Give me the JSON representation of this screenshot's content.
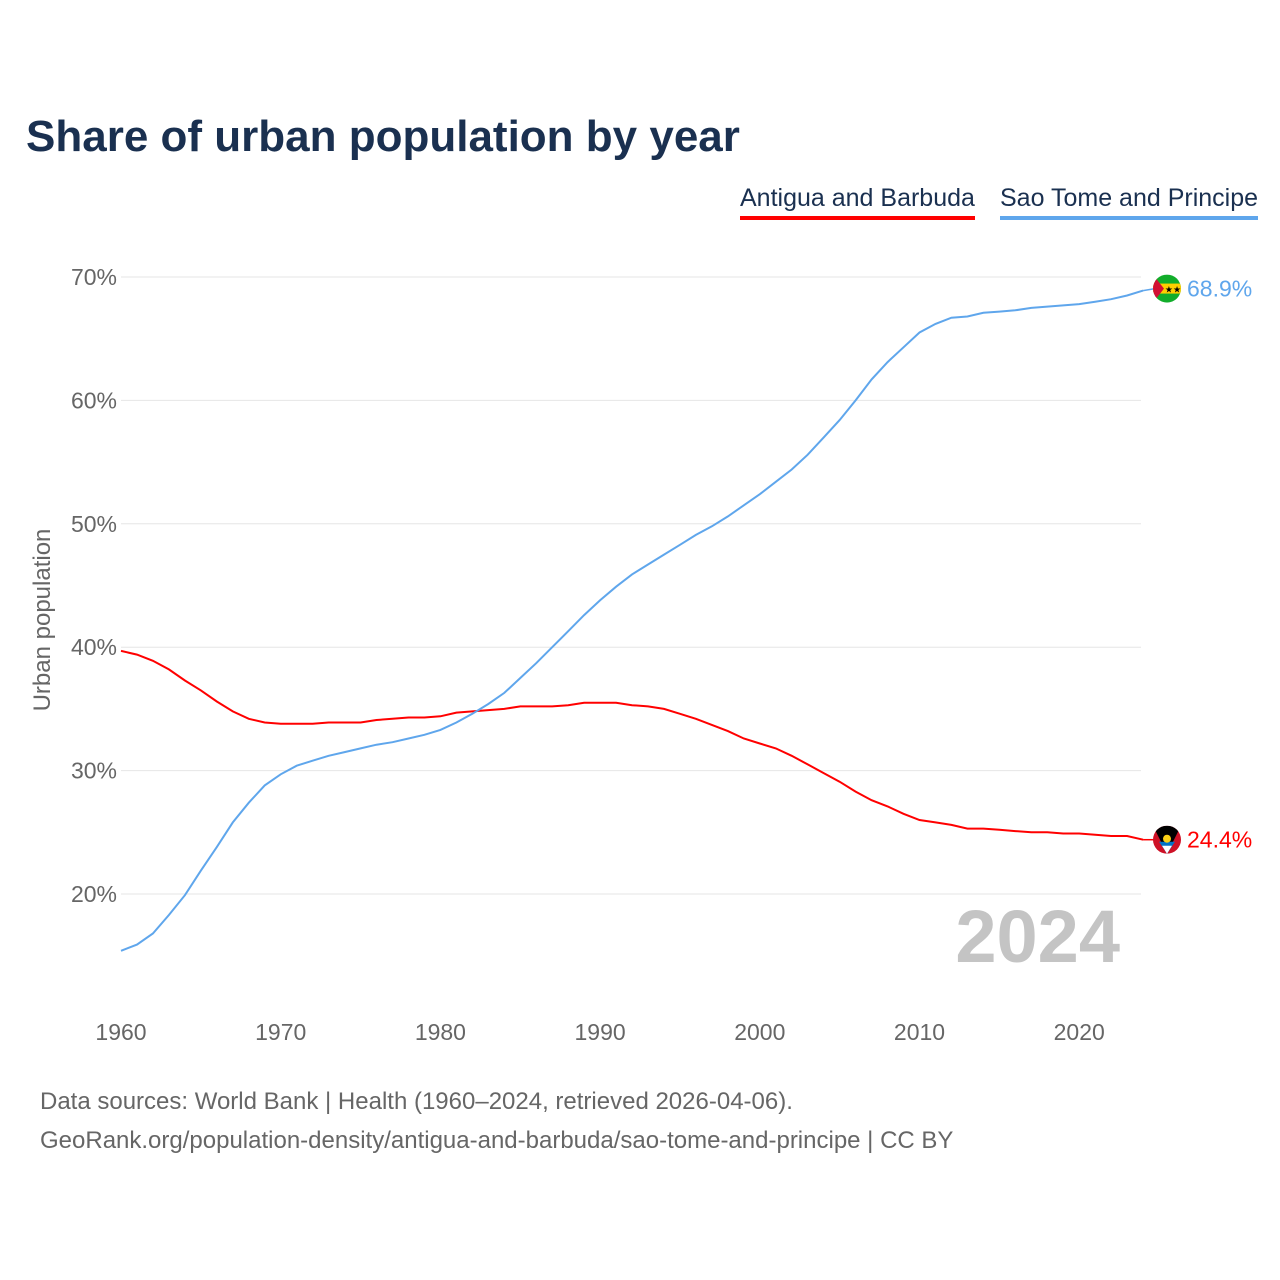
{
  "title": "Share of urban population by year",
  "legend": [
    {
      "label": "Antigua and Barbuda",
      "color": "#ff0000"
    },
    {
      "label": "Sao Tome and Principe",
      "color": "#5fa6ec"
    }
  ],
  "year_watermark": "2024",
  "footer": {
    "line1": "Data sources: World Bank | Health (1960–2024, retrieved 2026-04-06).",
    "line2": "GeoRank.org/population-density/antigua-and-barbuda/sao-tome-and-principe | CC BY"
  },
  "chart_data": {
    "type": "line",
    "title": "Share of urban population by year",
    "xlabel": "",
    "ylabel": "Urban population",
    "xlim": [
      1960,
      2024
    ],
    "ylim": [
      13,
      72
    ],
    "yticks": [
      20,
      30,
      40,
      50,
      60,
      70
    ],
    "ytick_labels": [
      "20%",
      "30%",
      "40%",
      "50%",
      "60%",
      "70%"
    ],
    "xticks": [
      1960,
      1970,
      1980,
      1990,
      2000,
      2010,
      2020
    ],
    "xtick_labels": [
      "1960",
      "1970",
      "1980",
      "1990",
      "2000",
      "2010",
      "2020"
    ],
    "x_start": 1960,
    "series": [
      {
        "name": "Antigua and Barbuda",
        "color": "#ff0000",
        "end_label": "24.4%",
        "values": [
          39.7,
          39.4,
          38.9,
          38.2,
          37.3,
          36.5,
          35.6,
          34.8,
          34.2,
          33.9,
          33.8,
          33.8,
          33.8,
          33.9,
          33.9,
          33.9,
          34.1,
          34.2,
          34.3,
          34.3,
          34.4,
          34.7,
          34.8,
          34.9,
          35.0,
          35.2,
          35.2,
          35.2,
          35.3,
          35.5,
          35.5,
          35.5,
          35.3,
          35.2,
          35.0,
          34.6,
          34.2,
          33.7,
          33.2,
          32.6,
          32.2,
          31.8,
          31.2,
          30.5,
          29.8,
          29.1,
          28.3,
          27.6,
          27.1,
          26.5,
          26.0,
          25.8,
          25.6,
          25.3,
          25.3,
          25.2,
          25.1,
          25.0,
          25.0,
          24.9,
          24.9,
          24.8,
          24.7,
          24.7,
          24.4
        ]
      },
      {
        "name": "Sao Tome and Principe",
        "color": "#5fa6ec",
        "end_label": "68.9%",
        "values": [
          15.4,
          15.9,
          16.8,
          18.3,
          19.9,
          21.9,
          23.8,
          25.8,
          27.4,
          28.8,
          29.7,
          30.4,
          30.8,
          31.2,
          31.5,
          31.8,
          32.1,
          32.3,
          32.6,
          32.9,
          33.3,
          33.9,
          34.6,
          35.4,
          36.3,
          37.5,
          38.7,
          40.0,
          41.3,
          42.6,
          43.8,
          44.9,
          45.9,
          46.7,
          47.5,
          48.3,
          49.1,
          49.8,
          50.6,
          51.5,
          52.4,
          53.4,
          54.4,
          55.6,
          57.0,
          58.4,
          60.0,
          61.7,
          63.1,
          64.3,
          65.5,
          66.2,
          66.7,
          66.8,
          67.1,
          67.2,
          67.3,
          67.5,
          67.6,
          67.7,
          67.8,
          68.0,
          68.2,
          68.5,
          68.9
        ]
      }
    ]
  }
}
